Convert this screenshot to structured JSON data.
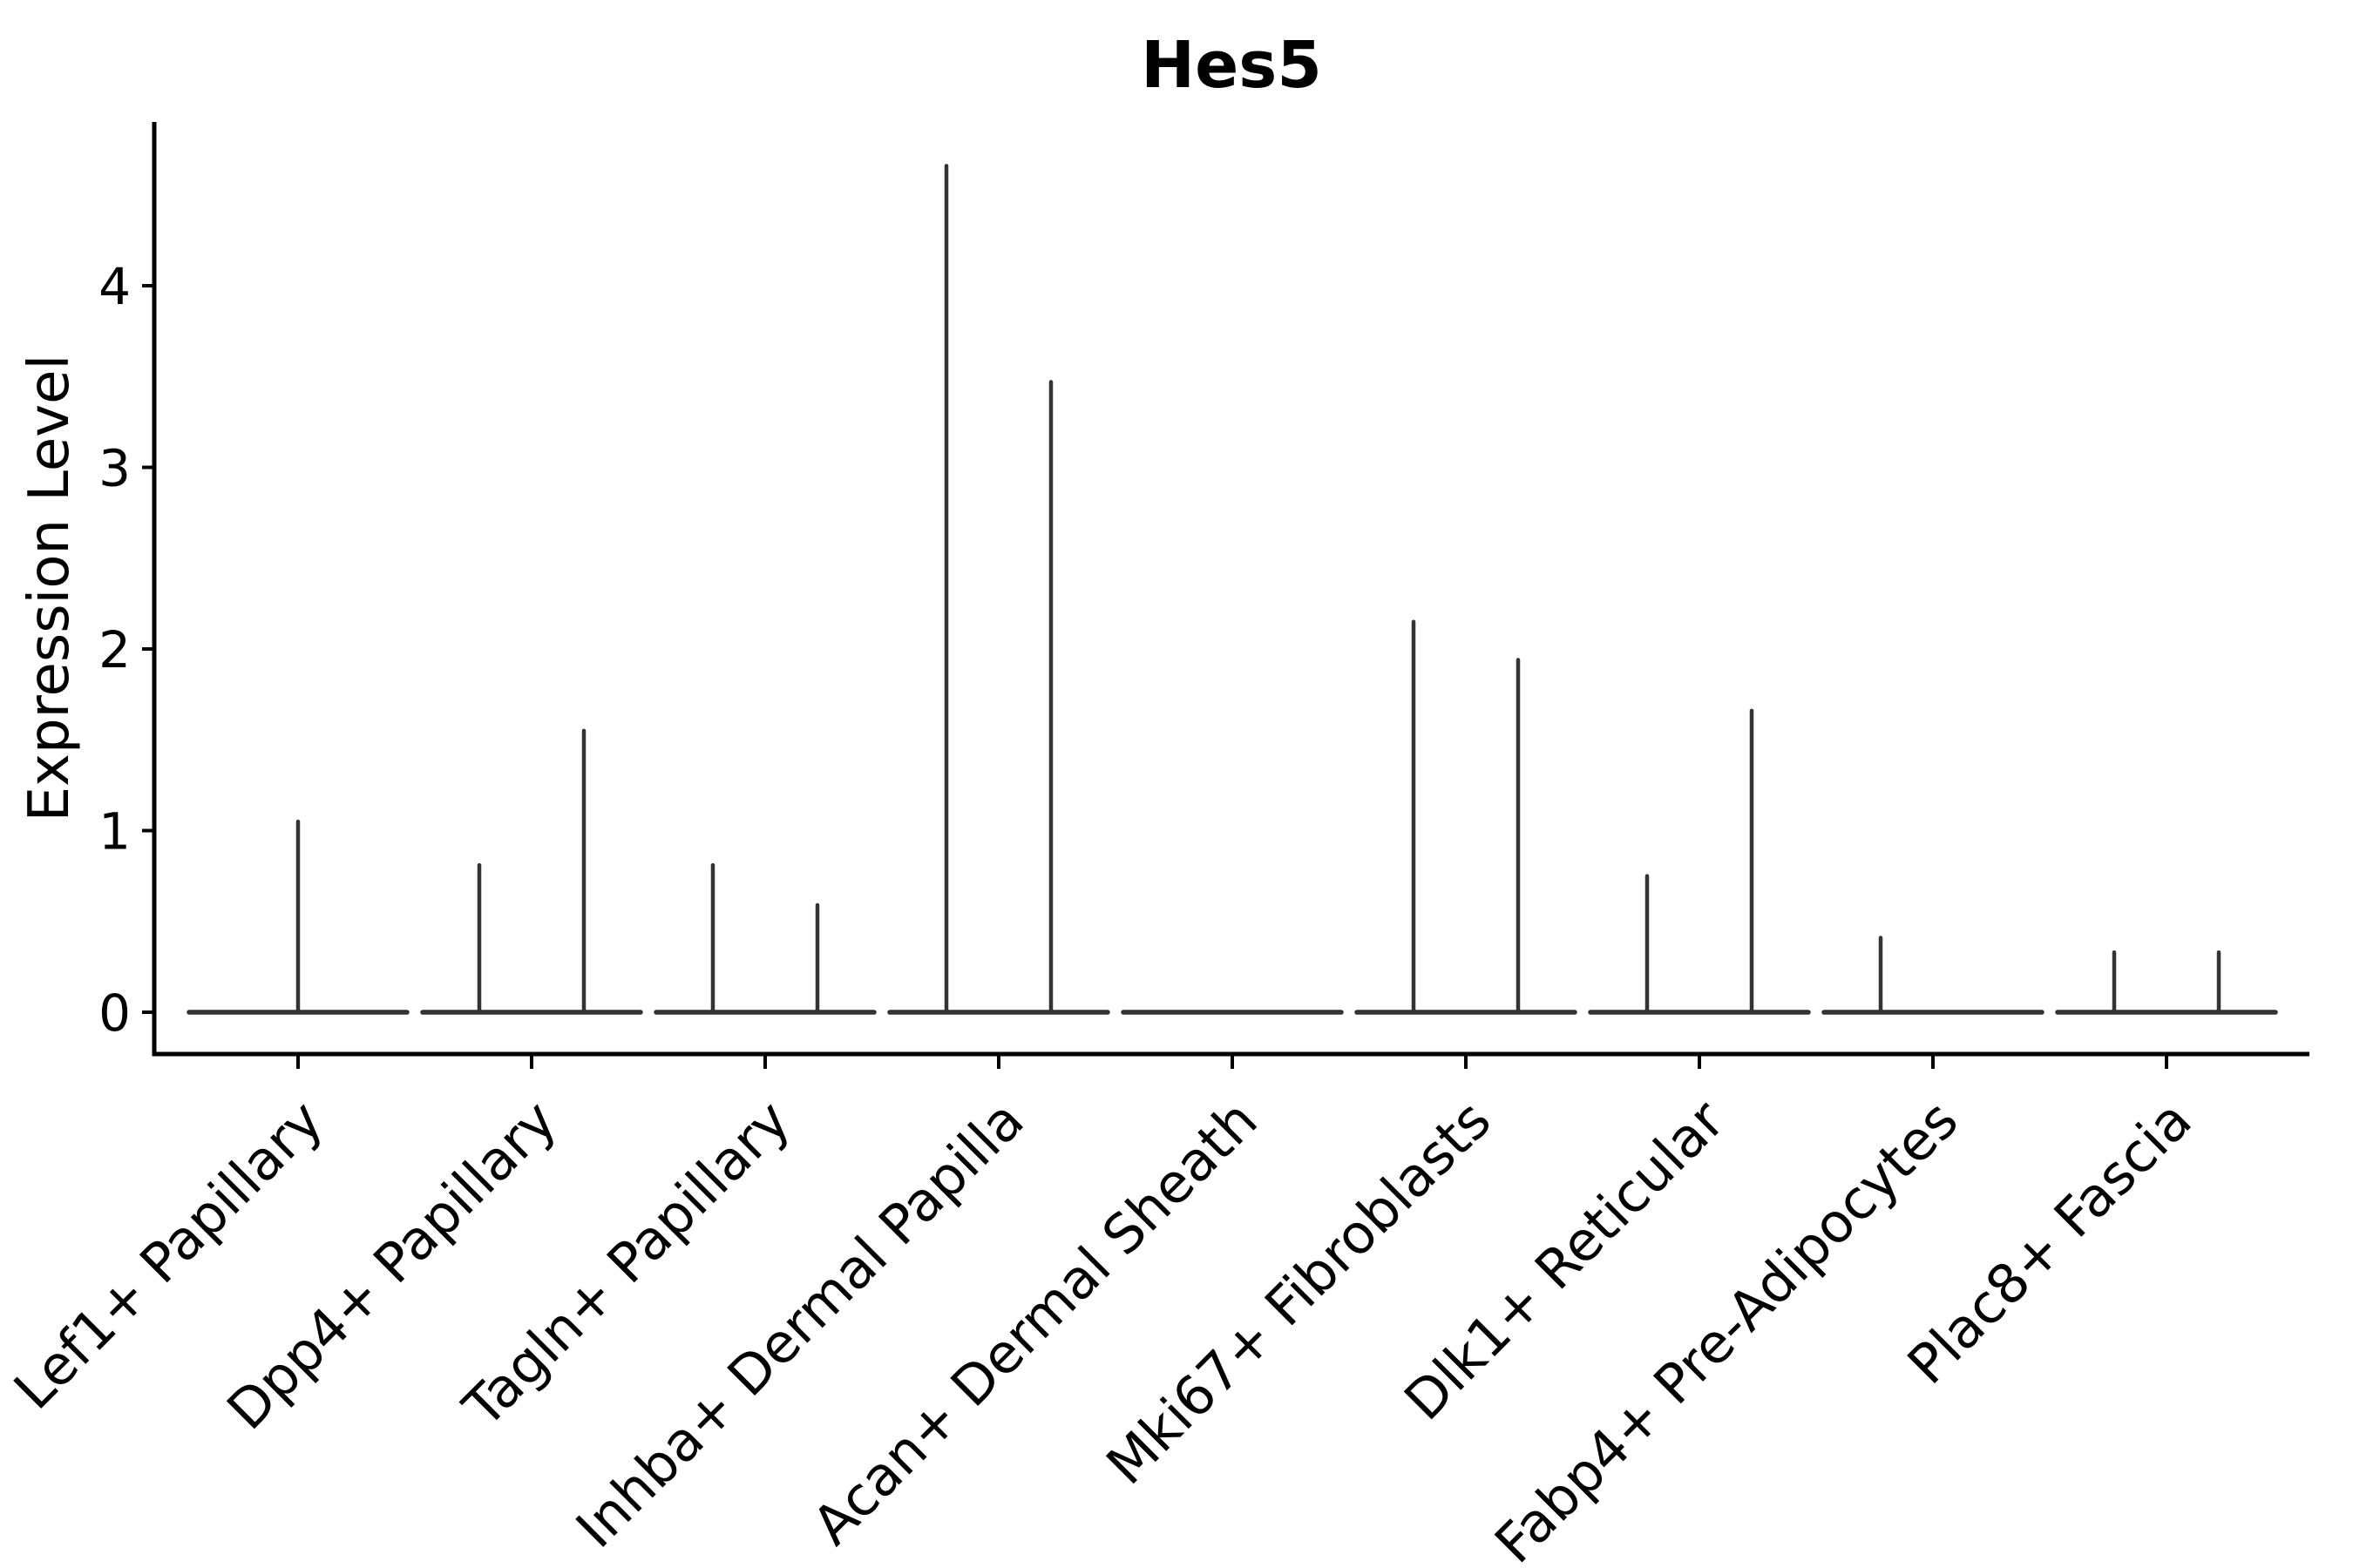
{
  "chart_data": {
    "type": "violin",
    "title": "Hes5",
    "ylabel": "Expression Level",
    "xlabel": "",
    "grid": false,
    "legend_position": "none",
    "x_tick_rotation": 45,
    "yticks": [
      0,
      1,
      2,
      3,
      4
    ],
    "ylim": [
      -0.23,
      4.9
    ],
    "categories": [
      "Lef1+ Papillary",
      "Dpp4+ Papillary",
      "Tagln+ Papillary",
      "Inhba+ Dermal Papilla",
      "Acan+ Dermal Sheath",
      "Mki67+ Fibroblasts",
      "Dlk1+ Reticular",
      "Fabp4+ Pre-Adipocytes",
      "Plac8+ Fascia"
    ],
    "series_note": "each category shows flat zero-density violin baseline with thin max-expression spikes",
    "violins": [
      {
        "category": "Lef1+ Papillary",
        "spikes": [
          {
            "pos": "center",
            "max": 1.05
          }
        ]
      },
      {
        "category": "Dpp4+ Papillary",
        "spikes": [
          {
            "pos": "left",
            "max": 0.81
          },
          {
            "pos": "right",
            "max": 1.55
          }
        ]
      },
      {
        "category": "Tagln+ Papillary",
        "spikes": [
          {
            "pos": "left",
            "max": 0.81
          },
          {
            "pos": "right",
            "max": 0.59
          }
        ]
      },
      {
        "category": "Inhba+ Dermal Papilla",
        "spikes": [
          {
            "pos": "left",
            "max": 4.66
          },
          {
            "pos": "right",
            "max": 3.47
          }
        ]
      },
      {
        "category": "Acan+ Dermal Sheath",
        "spikes": []
      },
      {
        "category": "Mki67+ Fibroblasts",
        "spikes": [
          {
            "pos": "left",
            "max": 2.15
          },
          {
            "pos": "right",
            "max": 1.94
          }
        ]
      },
      {
        "category": "Dlk1+ Reticular",
        "spikes": [
          {
            "pos": "left",
            "max": 0.75
          },
          {
            "pos": "right",
            "max": 1.66
          }
        ]
      },
      {
        "category": "Fabp4+ Pre-Adipocytes",
        "spikes": [
          {
            "pos": "left",
            "max": 0.41
          }
        ]
      },
      {
        "category": "Plac8+ Fascia",
        "spikes": [
          {
            "pos": "left",
            "max": 0.33
          },
          {
            "pos": "right",
            "max": 0.33
          }
        ]
      }
    ],
    "colors": {
      "violin_line": "#333333",
      "axis": "#000000",
      "text": "#000000",
      "background": "#ffffff"
    }
  }
}
